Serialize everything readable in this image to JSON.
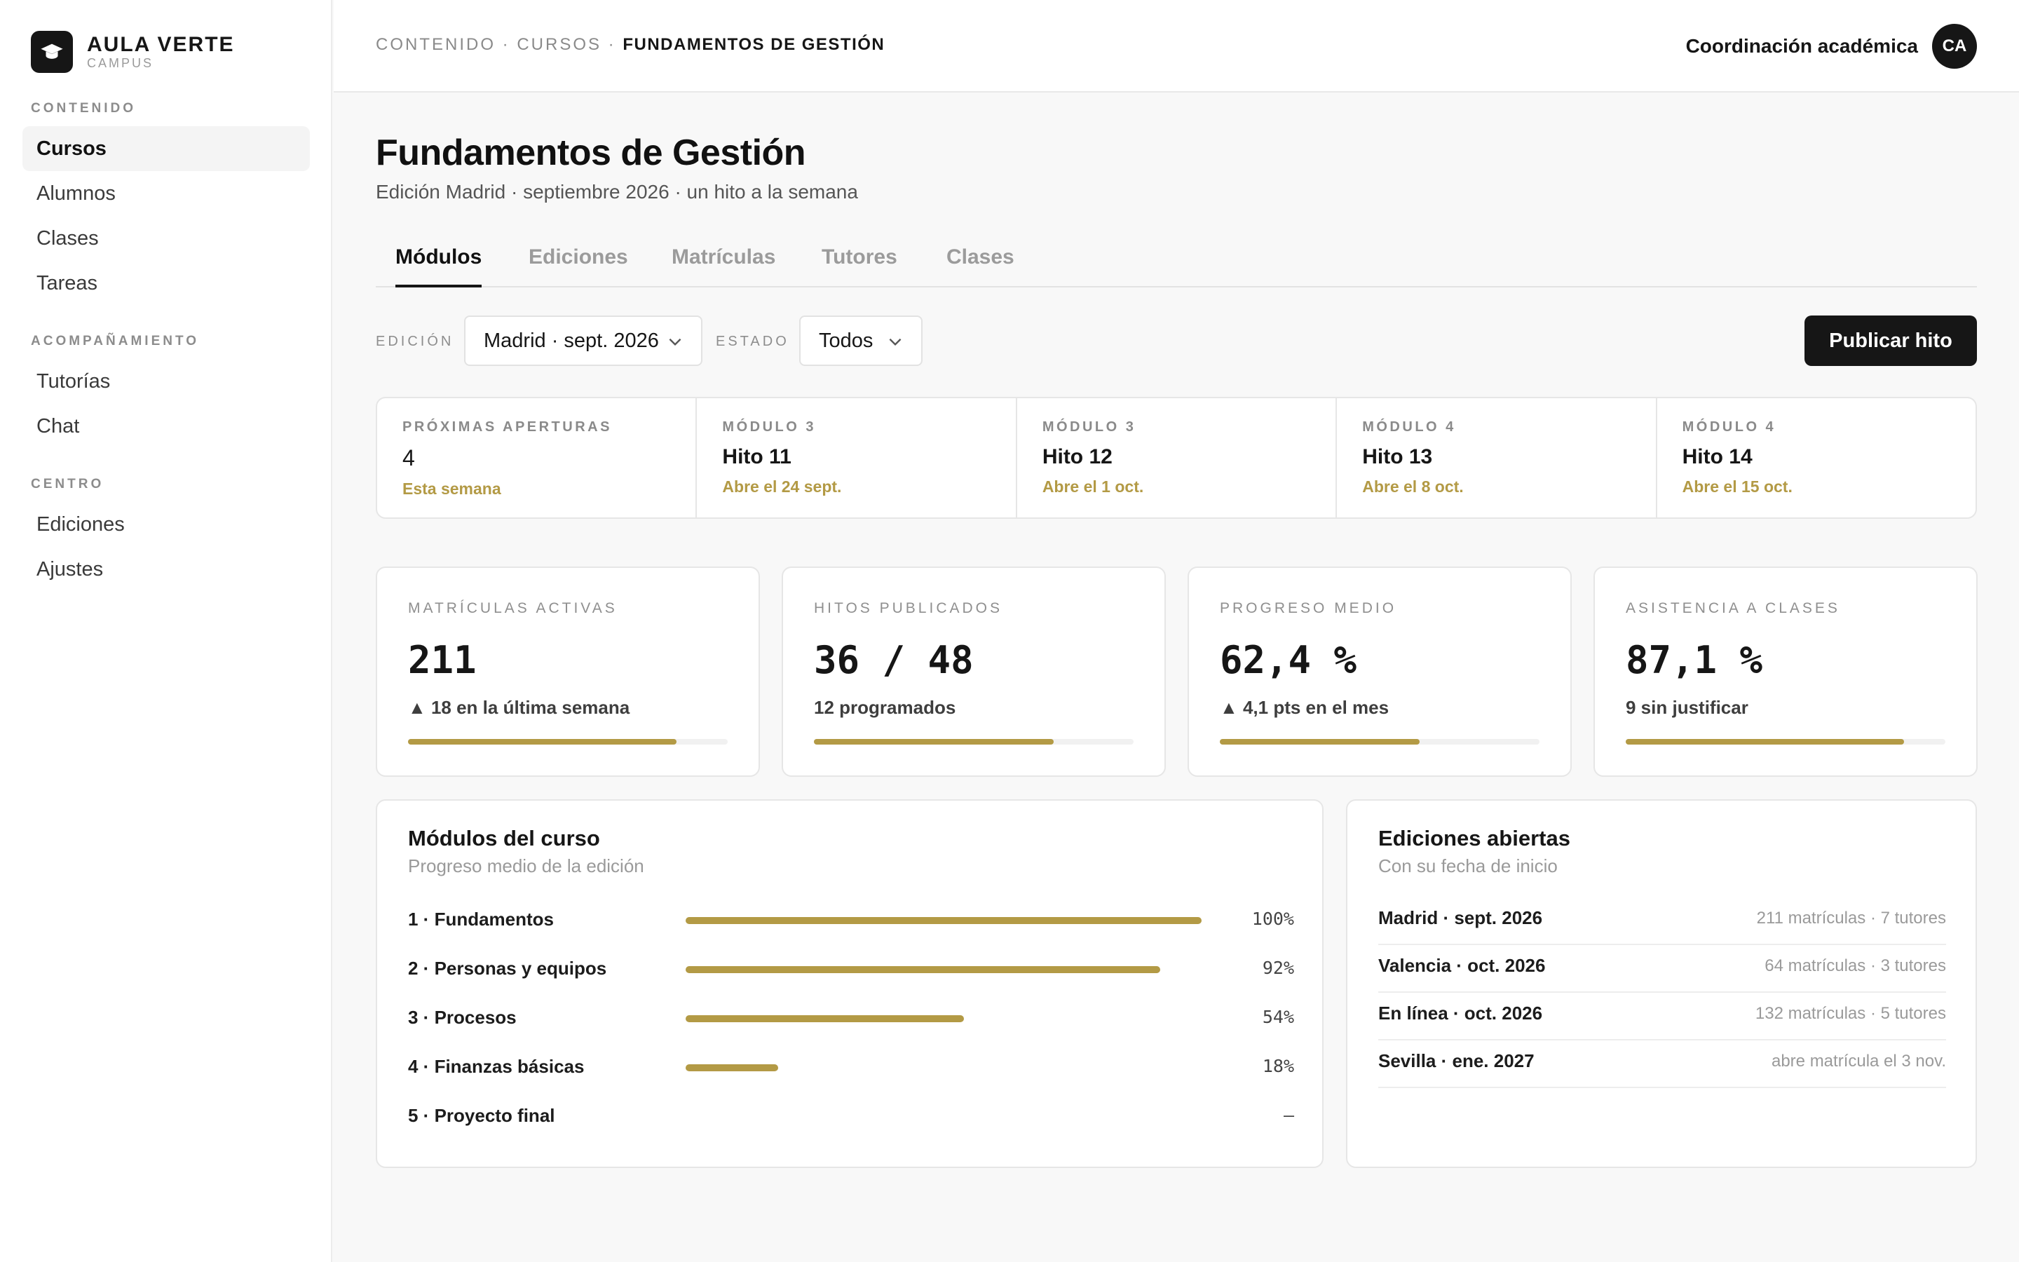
{
  "brand": {
    "name": "AULA VERTE",
    "sub": "CAMPUS",
    "logo_icon": "graduation-cap-icon"
  },
  "sidebar": {
    "sections": [
      {
        "label": "CONTENIDO",
        "items": [
          {
            "label": "Cursos",
            "active": true
          },
          {
            "label": "Alumnos"
          },
          {
            "label": "Clases"
          },
          {
            "label": "Tareas"
          }
        ]
      },
      {
        "label": "ACOMPAÑAMIENTO",
        "items": [
          {
            "label": "Tutorías"
          },
          {
            "label": "Chat"
          }
        ]
      },
      {
        "label": "CENTRO",
        "items": [
          {
            "label": "Ediciones"
          },
          {
            "label": "Ajustes"
          }
        ]
      }
    ]
  },
  "header": {
    "breadcrumb": [
      "CONTENIDO",
      "CURSOS",
      "FUNDAMENTOS DE GESTIÓN"
    ],
    "breadcrumb_sep": " · ",
    "user_name": "Coordinación académica",
    "user_initials": "CA"
  },
  "page": {
    "title": "Fundamentos de Gestión",
    "subtitle": "Edición Madrid · septiembre 2026 · un hito a la semana"
  },
  "tabs": [
    {
      "label": "Módulos",
      "active": true
    },
    {
      "label": "Ediciones"
    },
    {
      "label": "Matrículas"
    },
    {
      "label": "Tutores"
    },
    {
      "label": "Clases"
    }
  ],
  "filters": {
    "edition_label": "EDICIÓN",
    "edition_value": "Madrid · sept. 2026",
    "state_label": "ESTADO",
    "state_value": "Todos"
  },
  "publish_label": "Publicar hito",
  "upcoming": {
    "summary": {
      "eyebrow": "PRÓXIMAS APERTURAS",
      "count": "4",
      "note": "Esta semana"
    },
    "items": [
      {
        "eyebrow": "MÓDULO 3",
        "title": "Hito 11",
        "note": "Abre el 24 sept."
      },
      {
        "eyebrow": "MÓDULO 3",
        "title": "Hito 12",
        "note": "Abre el 1 oct."
      },
      {
        "eyebrow": "MÓDULO 4",
        "title": "Hito 13",
        "note": "Abre el 8 oct."
      },
      {
        "eyebrow": "MÓDULO 4",
        "title": "Hito 14",
        "note": "Abre el 15 oct."
      }
    ]
  },
  "kpis": [
    {
      "label": "MATRÍCULAS ACTIVAS",
      "value": "211",
      "delta": "▲ 18 en la última semana",
      "progress": 0.84
    },
    {
      "label": "HITOS PUBLICADOS",
      "value": "36 / 48",
      "delta": "12 programados",
      "progress": 0.75
    },
    {
      "label": "PROGRESO MEDIO",
      "value": "62,4 %",
      "delta": "▲ 4,1 pts en el mes",
      "progress": 0.624
    },
    {
      "label": "ASISTENCIA A CLASES",
      "value": "87,1 %",
      "delta": "9 sin justificar",
      "progress": 0.871
    }
  ],
  "modules_panel": {
    "title": "Módulos del curso",
    "subtitle": "Progreso medio de la edición",
    "rows": [
      {
        "name": "1 · Fundamentos",
        "pct": "100%",
        "progress": 1.0
      },
      {
        "name": "2 · Personas y equipos",
        "pct": "92%",
        "progress": 0.92
      },
      {
        "name": "3 · Procesos",
        "pct": "54%",
        "progress": 0.54
      },
      {
        "name": "4 · Finanzas básicas",
        "pct": "18%",
        "progress": 0.18
      },
      {
        "name": "5 · Proyecto final",
        "pct": "–",
        "progress": 0
      }
    ]
  },
  "editions_panel": {
    "title": "Ediciones abiertas",
    "subtitle": "Con su fecha de inicio",
    "rows": [
      {
        "name": "Madrid · sept. 2026",
        "meta": "211 matrículas · 7 tutores"
      },
      {
        "name": "Valencia · oct. 2026",
        "meta": "64 matrículas · 3 tutores"
      },
      {
        "name": "En línea · oct. 2026",
        "meta": "132 matrículas · 5 tutores"
      },
      {
        "name": "Sevilla · ene. 2027",
        "meta": "abre matrícula el 3 nov."
      }
    ]
  },
  "colors": {
    "accent": "#b39a45",
    "ink": "#161616",
    "background": "#f8f8f8"
  }
}
